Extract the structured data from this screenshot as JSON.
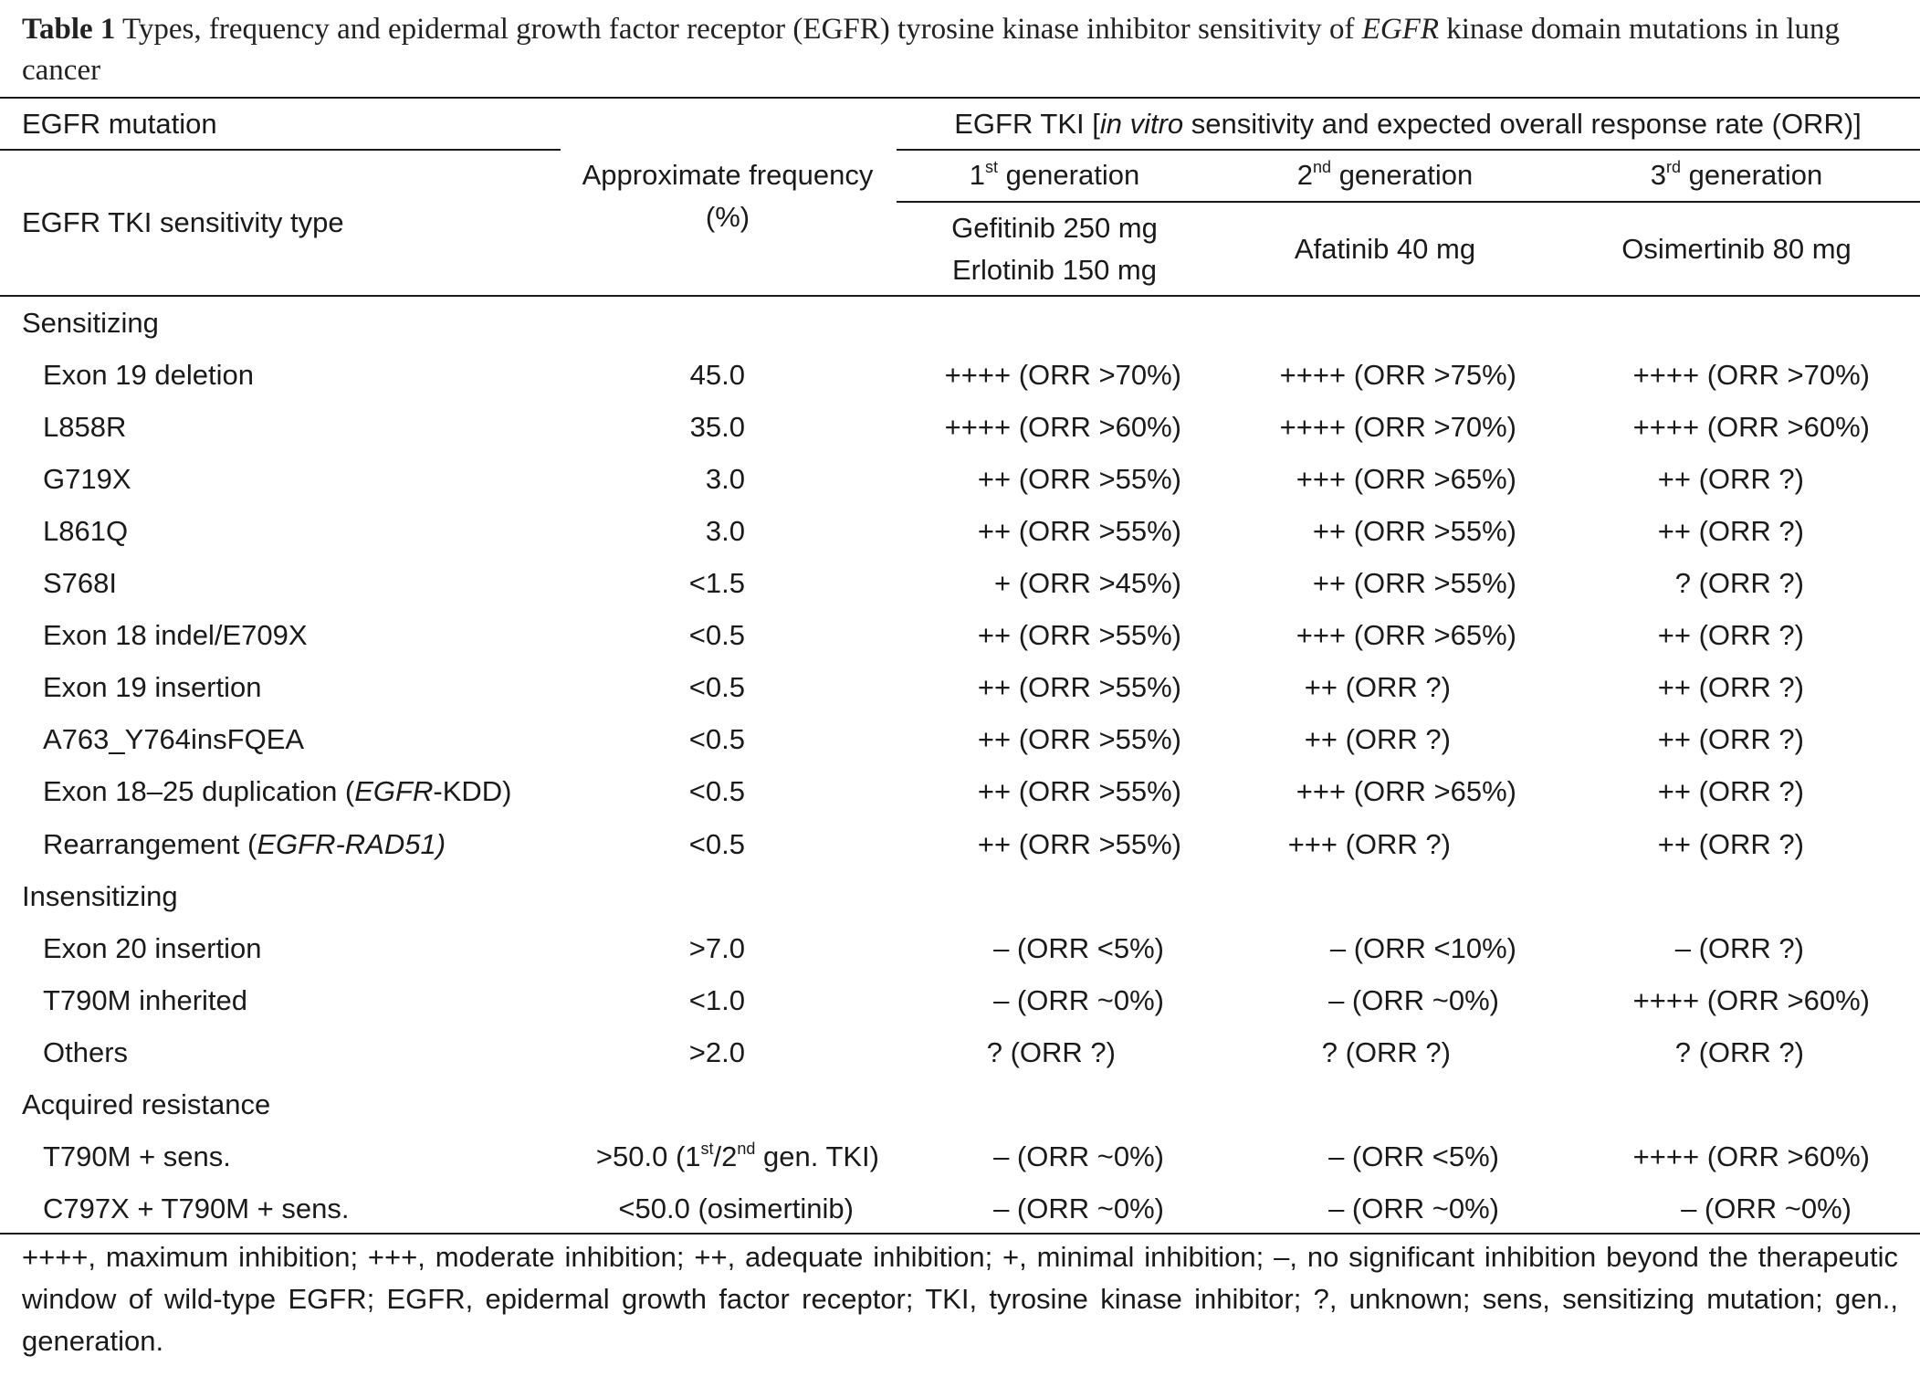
{
  "caption": {
    "label": "Table 1",
    "text_a": " Types, frequency and epidermal growth factor receptor (EGFR) tyrosine kinase inhibitor sensitivity of ",
    "text_italic": "EGFR",
    "text_b": " kinase domain mutations in lung cancer"
  },
  "header": {
    "col1_top": "EGFR mutation",
    "col1_bottom": "EGFR TKI sensitivity type",
    "freq_line1": "Approximate frequency",
    "freq_line2": "(%)",
    "tki_group_a": "EGFR TKI [",
    "tki_group_italic": "in vitro",
    "tki_group_b": " sensitivity and expected overall response rate (ORR)]",
    "generations": [
      {
        "num": "1",
        "sup": "st",
        "word": " generation"
      },
      {
        "num": "2",
        "sup": "nd",
        "word": " generation"
      },
      {
        "num": "3",
        "sup": "rd",
        "word": " generation"
      }
    ],
    "drugs": {
      "gen1_line1": "Gefitinib 250 mg",
      "gen1_line2": "Erlotinib 150 mg",
      "gen2": "Afatinib 40 mg",
      "gen3": "Osimertinib 80 mg"
    }
  },
  "sections": [
    {
      "title": "Sensitizing",
      "rows": [
        {
          "mutation": "Exon 19 deletion",
          "freq": "45.0",
          "g1": "++++ (ORR >70%)",
          "g2": "++++ (ORR >75%)",
          "g3": "++++ (ORR >70%)"
        },
        {
          "mutation": "L858R",
          "freq": "35.0",
          "g1": "++++ (ORR >60%)",
          "g2": "++++ (ORR >70%)",
          "g3": "++++ (ORR >60%)"
        },
        {
          "mutation": "G719X",
          "freq": "3.0",
          "g1": "++ (ORR >55%)",
          "g2": "+++ (ORR >65%)",
          "g3": "++ (ORR ?)"
        },
        {
          "mutation": "L861Q",
          "freq": "3.0",
          "g1": "++ (ORR >55%)",
          "g2": "++ (ORR >55%)",
          "g3": "++ (ORR ?)"
        },
        {
          "mutation": "S768I",
          "freq": "<1.5",
          "g1": "+ (ORR >45%)",
          "g2": "++ (ORR >55%)",
          "g3": "? (ORR ?)"
        },
        {
          "mutation": "Exon 18 indel/E709X",
          "freq": "<0.5",
          "g1": "++ (ORR >55%)",
          "g2": "+++ (ORR >65%)",
          "g3": "++ (ORR ?)"
        },
        {
          "mutation": "Exon 19 insertion",
          "freq": "<0.5",
          "g1": "++ (ORR >55%)",
          "g2": "++ (ORR ?)",
          "g3": "++ (ORR ?)"
        },
        {
          "mutation": "A763_Y764insFQEA",
          "freq": "<0.5",
          "g1": "++ (ORR >55%)",
          "g2": "++ (ORR ?)",
          "g3": "++ (ORR ?)"
        },
        {
          "mutation_a": "Exon 18–25 duplication (",
          "mutation_i": "EGFR",
          "mutation_b": "-KDD)",
          "freq": "<0.5",
          "g1": "++ (ORR >55%)",
          "g2": "+++ (ORR >65%)",
          "g3": "++ (ORR ?)"
        },
        {
          "mutation_a": "Rearrangement (",
          "mutation_i": "EGFR-RAD51)",
          "mutation_b": "",
          "freq": "<0.5",
          "g1": "++ (ORR >55%)",
          "g2": "+++ (ORR ?)",
          "g3": "++ (ORR ?)"
        }
      ]
    },
    {
      "title": "Insensitizing",
      "rows": [
        {
          "mutation": "Exon 20 insertion",
          "freq": ">7.0",
          "g1": "– (ORR <5%)",
          "g2": "– (ORR <10%)",
          "g3": "– (ORR ?)"
        },
        {
          "mutation": "T790M inherited",
          "freq": "<1.0",
          "g1": "– (ORR ~0%)",
          "g2": "– (ORR ~0%)",
          "g3": "++++ (ORR >60%)"
        },
        {
          "mutation": "Others",
          "freq": ">2.0",
          "g1": "? (ORR ?)",
          "g2": "? (ORR ?)",
          "g3": "? (ORR ?)"
        }
      ]
    },
    {
      "title": "Acquired resistance",
      "rows": [
        {
          "mutation": "T790M + sens.",
          "freq_a": ">50.0 (1",
          "freq_sup1": "st",
          "freq_b": "/2",
          "freq_sup2": "nd",
          "freq_c": " gen. TKI)",
          "g1": "– (ORR ~0%)",
          "g2": "– (ORR <5%)",
          "g3": "++++ (ORR >60%)"
        },
        {
          "mutation": "C797X + T790M + sens.",
          "freq": "<50.0 (osimertinib)",
          "g1": "– (ORR ~0%)",
          "g2": "– (ORR ~0%)",
          "g3": "– (ORR ~0%)"
        }
      ]
    }
  ],
  "footnote": "++++, maximum inhibition; +++, moderate inhibition; ++, adequate inhibition; +, minimal inhibition; –, no significant inhibition beyond the therapeutic window of wild-type EGFR; EGFR, epidermal growth factor receptor; TKI, tyrosine kinase inhibitor; ?, unknown; sens, sensitizing mutation; gen., generation."
}
